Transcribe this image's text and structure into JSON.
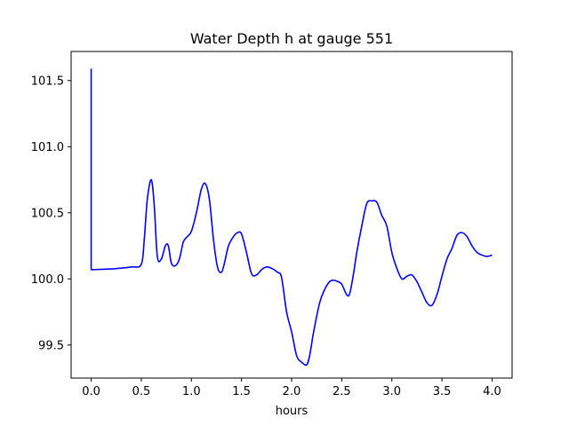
{
  "chart_data": {
    "type": "line",
    "title": "Water Depth h at gauge 551",
    "xlabel": "hours",
    "ylabel": "",
    "xlim": [
      -0.2,
      4.2
    ],
    "ylim": [
      99.25,
      101.72
    ],
    "xticks": [
      0.0,
      0.5,
      1.0,
      1.5,
      2.0,
      2.5,
      3.0,
      3.5,
      4.0
    ],
    "xtick_labels": [
      "0.0",
      "0.5",
      "1.0",
      "1.5",
      "2.0",
      "2.5",
      "3.0",
      "3.5",
      "4.0"
    ],
    "yticks": [
      99.5,
      100.0,
      100.5,
      101.0,
      101.5
    ],
    "ytick_labels": [
      "99.5",
      "100.0",
      "100.5",
      "101.0",
      "101.5"
    ],
    "grid": false,
    "line_color": "#0000ff",
    "series": [
      {
        "name": "",
        "x": [
          0.0,
          0.0,
          0.0,
          0.2,
          0.4,
          0.5,
          0.53,
          0.56,
          0.6,
          0.63,
          0.66,
          0.7,
          0.74,
          0.77,
          0.8,
          0.84,
          0.88,
          0.92,
          0.96,
          1.0,
          1.05,
          1.1,
          1.14,
          1.18,
          1.22,
          1.26,
          1.3,
          1.33,
          1.37,
          1.42,
          1.46,
          1.5,
          1.55,
          1.6,
          1.65,
          1.7,
          1.75,
          1.8,
          1.86,
          1.9,
          1.95,
          2.0,
          2.05,
          2.1,
          2.15,
          2.18,
          2.22,
          2.28,
          2.33,
          2.38,
          2.42,
          2.46,
          2.5,
          2.55,
          2.58,
          2.62,
          2.65,
          2.7,
          2.75,
          2.8,
          2.85,
          2.9,
          2.95,
          3.0,
          3.05,
          3.1,
          3.15,
          3.2,
          3.25,
          3.3,
          3.35,
          3.4,
          3.45,
          3.5,
          3.55,
          3.6,
          3.65,
          3.7,
          3.75,
          3.8,
          3.85,
          3.9,
          3.95,
          4.0
        ],
        "values": [
          101.59,
          101.2,
          100.07,
          100.075,
          100.09,
          100.11,
          100.3,
          100.6,
          100.75,
          100.55,
          100.17,
          100.15,
          100.25,
          100.25,
          100.12,
          100.1,
          100.15,
          100.28,
          100.32,
          100.36,
          100.5,
          100.68,
          100.72,
          100.6,
          100.3,
          100.09,
          100.05,
          100.12,
          100.25,
          100.32,
          100.35,
          100.34,
          100.2,
          100.04,
          100.03,
          100.07,
          100.09,
          100.08,
          100.05,
          100.01,
          99.75,
          99.6,
          99.42,
          99.37,
          99.35,
          99.42,
          99.6,
          99.82,
          99.92,
          99.98,
          99.99,
          99.98,
          99.96,
          99.88,
          99.89,
          100.05,
          100.2,
          100.4,
          100.57,
          100.59,
          100.58,
          100.48,
          100.4,
          100.2,
          100.08,
          100.0,
          100.02,
          100.03,
          99.98,
          99.9,
          99.82,
          99.8,
          99.88,
          100.02,
          100.15,
          100.23,
          100.33,
          100.35,
          100.32,
          100.25,
          100.2,
          100.18,
          100.17,
          100.18
        ]
      }
    ]
  }
}
